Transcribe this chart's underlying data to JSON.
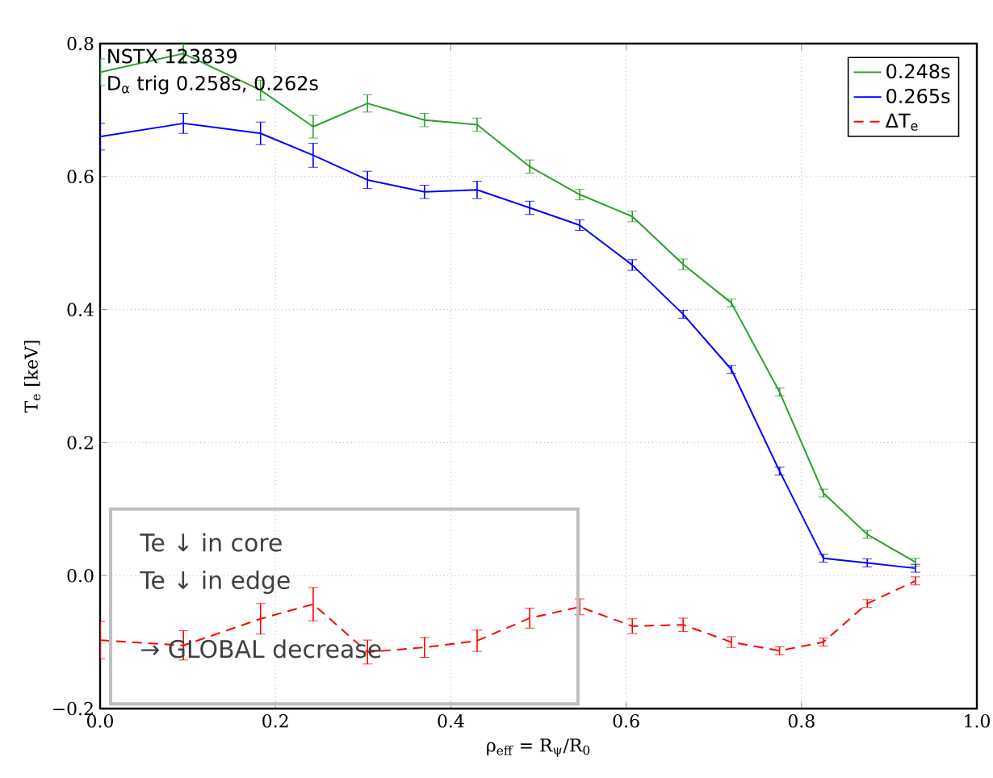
{
  "chart_data": {
    "type": "line",
    "xlabel": "ρ$_{eff}$ = R$_{ψ}$/R$_{0}$",
    "ylabel": "T$_{e}$ [keV]",
    "x": [
      0,
      0.095,
      0.183,
      0.243,
      0.305,
      0.37,
      0.43,
      0.49,
      0.547,
      0.607,
      0.665,
      0.72,
      0.775,
      0.825,
      0.875,
      0.93
    ],
    "series": [
      {
        "name": "0.248s",
        "color": "#2ca02c",
        "line_style": "solid",
        "values": [
          0.757,
          0.785,
          0.73,
          0.675,
          0.71,
          0.685,
          0.678,
          0.615,
          0.573,
          0.54,
          0.468,
          0.41,
          0.276,
          0.124,
          0.062,
          0.02
        ],
        "errors": [
          0.02,
          0.015,
          0.015,
          0.017,
          0.013,
          0.01,
          0.01,
          0.01,
          0.008,
          0.008,
          0.008,
          0.006,
          0.006,
          0.006,
          0.006,
          0.006
        ]
      },
      {
        "name": "0.265s",
        "color": "#0000ff",
        "line_style": "solid",
        "values": [
          0.66,
          0.68,
          0.665,
          0.632,
          0.595,
          0.577,
          0.58,
          0.553,
          0.527,
          0.467,
          0.393,
          0.31,
          0.157,
          0.026,
          0.019,
          0.011
        ],
        "errors": [
          0.02,
          0.015,
          0.017,
          0.018,
          0.013,
          0.01,
          0.013,
          0.01,
          0.008,
          0.008,
          0.006,
          0.006,
          0.006,
          0.006,
          0.006,
          0.006
        ]
      },
      {
        "name": "ΔT$_{e}$",
        "color": "#ff0000",
        "line_style": "dashed",
        "values": [
          -0.097,
          -0.105,
          -0.065,
          -0.043,
          -0.115,
          -0.108,
          -0.098,
          -0.064,
          -0.047,
          -0.076,
          -0.074,
          -0.1,
          -0.113,
          -0.1,
          -0.042,
          -0.008
        ],
        "errors": [
          0.028,
          0.022,
          0.023,
          0.025,
          0.018,
          0.015,
          0.016,
          0.015,
          0.012,
          0.011,
          0.01,
          0.008,
          0.006,
          0.006,
          0.006,
          0.006
        ]
      }
    ],
    "xlim": [
      0,
      1
    ],
    "ylim": [
      -0.2,
      0.8
    ],
    "xticks": [
      {
        "value": 0,
        "label": "0.0"
      },
      0.2,
      0.4,
      0.6,
      0.8,
      {
        "value": 1,
        "label": "1.0"
      }
    ],
    "yticks": [
      {
        "value": -0.2,
        "label": "−0.2"
      },
      {
        "value": 0,
        "label": "0.0"
      },
      0.2,
      0.4,
      0.6,
      0.8
    ],
    "grid": true,
    "legend": "top right",
    "marker": "none",
    "annotations": [
      "NSTX 123839",
      "D$_{α}$ trig 0.258s, 0.262s",
      "Te ↓ in core",
      "Te ↓ in edge",
      "→ GLOBAL decrease"
    ]
  }
}
